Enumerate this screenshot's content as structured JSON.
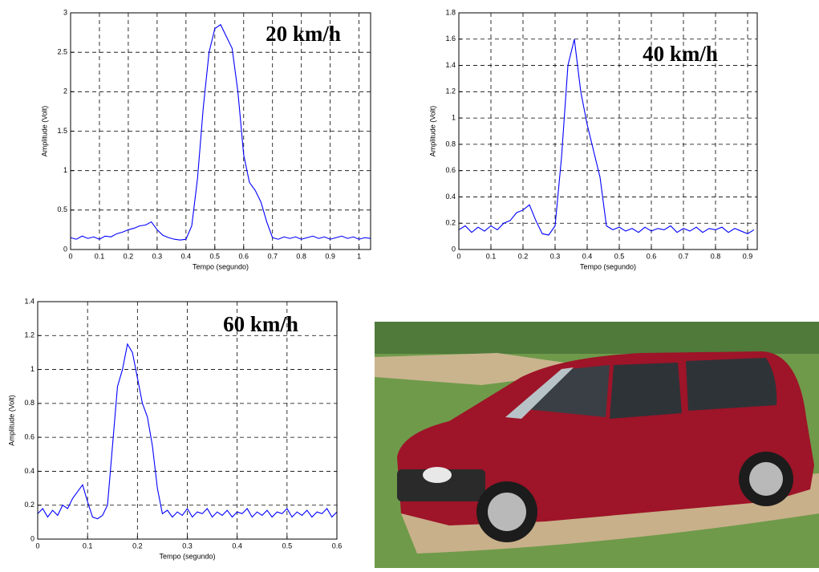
{
  "chart_data": [
    {
      "type": "line",
      "annotation": "20 km/h",
      "xlabel": "Tempo (segundo)",
      "ylabel": "Amplitude (Volt)",
      "color": "#0000ff",
      "grid": true,
      "xlim": [
        0,
        1.04
      ],
      "xticks": [
        0,
        0.1,
        0.2,
        0.3,
        0.4,
        0.5,
        0.6,
        0.7,
        0.8,
        0.9,
        1
      ],
      "ylim": [
        0,
        3
      ],
      "yticks": [
        0,
        0.5,
        1,
        1.5,
        2,
        2.5,
        3
      ],
      "x": [
        0,
        0.02,
        0.04,
        0.06,
        0.08,
        0.1,
        0.12,
        0.14,
        0.16,
        0.18,
        0.2,
        0.22,
        0.24,
        0.26,
        0.28,
        0.3,
        0.32,
        0.34,
        0.36,
        0.38,
        0.4,
        0.42,
        0.44,
        0.46,
        0.48,
        0.5,
        0.52,
        0.54,
        0.56,
        0.58,
        0.6,
        0.62,
        0.64,
        0.66,
        0.68,
        0.7,
        0.72,
        0.74,
        0.76,
        0.78,
        0.8,
        0.82,
        0.84,
        0.86,
        0.88,
        0.9,
        0.92,
        0.94,
        0.96,
        0.98,
        1,
        1.02,
        1.04
      ],
      "values": [
        0.15,
        0.13,
        0.17,
        0.14,
        0.16,
        0.13,
        0.17,
        0.16,
        0.2,
        0.22,
        0.25,
        0.27,
        0.3,
        0.31,
        0.35,
        0.25,
        0.18,
        0.15,
        0.13,
        0.12,
        0.13,
        0.3,
        0.9,
        1.8,
        2.5,
        2.8,
        2.85,
        2.7,
        2.55,
        2.0,
        1.2,
        0.85,
        0.75,
        0.6,
        0.35,
        0.15,
        0.13,
        0.16,
        0.14,
        0.16,
        0.13,
        0.15,
        0.17,
        0.14,
        0.16,
        0.13,
        0.15,
        0.17,
        0.14,
        0.16,
        0.13,
        0.15,
        0.14
      ]
    },
    {
      "type": "line",
      "annotation": "40 km/h",
      "xlabel": "Tempo (segundo)",
      "ylabel": "Amplitude (Volt)",
      "color": "#0000ff",
      "grid": true,
      "xlim": [
        0,
        0.93
      ],
      "xticks": [
        0,
        0.1,
        0.2,
        0.3,
        0.4,
        0.5,
        0.6,
        0.7,
        0.8,
        0.9
      ],
      "ylim": [
        0,
        1.8
      ],
      "yticks": [
        0,
        0.2,
        0.4,
        0.6,
        0.8,
        1,
        1.2,
        1.4,
        1.6,
        1.8
      ],
      "x": [
        0,
        0.02,
        0.04,
        0.06,
        0.08,
        0.1,
        0.12,
        0.14,
        0.16,
        0.18,
        0.2,
        0.22,
        0.24,
        0.26,
        0.28,
        0.3,
        0.32,
        0.34,
        0.36,
        0.38,
        0.4,
        0.42,
        0.44,
        0.46,
        0.48,
        0.5,
        0.52,
        0.54,
        0.56,
        0.58,
        0.6,
        0.62,
        0.64,
        0.66,
        0.68,
        0.7,
        0.72,
        0.74,
        0.76,
        0.78,
        0.8,
        0.82,
        0.84,
        0.86,
        0.88,
        0.9,
        0.92
      ],
      "values": [
        0.15,
        0.18,
        0.13,
        0.17,
        0.14,
        0.18,
        0.15,
        0.2,
        0.22,
        0.28,
        0.3,
        0.34,
        0.22,
        0.12,
        0.11,
        0.18,
        0.7,
        1.4,
        1.6,
        1.2,
        0.95,
        0.75,
        0.55,
        0.18,
        0.15,
        0.17,
        0.14,
        0.16,
        0.13,
        0.17,
        0.14,
        0.16,
        0.15,
        0.18,
        0.13,
        0.16,
        0.14,
        0.17,
        0.13,
        0.16,
        0.15,
        0.17,
        0.13,
        0.16,
        0.14,
        0.12,
        0.15
      ]
    },
    {
      "type": "line",
      "annotation": "60 km/h",
      "xlabel": "Tempo (segundo)",
      "ylabel": "Amplitude (Volt)",
      "color": "#0000ff",
      "grid": true,
      "xlim": [
        0,
        0.6
      ],
      "xticks": [
        0,
        0.1,
        0.2,
        0.3,
        0.4,
        0.5,
        0.6
      ],
      "ylim": [
        0,
        1.4
      ],
      "yticks": [
        0,
        0.2,
        0.4,
        0.6,
        0.8,
        1,
        1.2,
        1.4
      ],
      "x": [
        0,
        0.01,
        0.02,
        0.03,
        0.04,
        0.05,
        0.06,
        0.07,
        0.08,
        0.09,
        0.1,
        0.11,
        0.12,
        0.13,
        0.14,
        0.15,
        0.16,
        0.17,
        0.18,
        0.19,
        0.2,
        0.21,
        0.22,
        0.23,
        0.24,
        0.25,
        0.26,
        0.27,
        0.28,
        0.29,
        0.3,
        0.31,
        0.32,
        0.33,
        0.34,
        0.35,
        0.36,
        0.37,
        0.38,
        0.39,
        0.4,
        0.41,
        0.42,
        0.43,
        0.44,
        0.45,
        0.46,
        0.47,
        0.48,
        0.49,
        0.5,
        0.51,
        0.52,
        0.53,
        0.54,
        0.55,
        0.56,
        0.57,
        0.58,
        0.59,
        0.6
      ],
      "values": [
        0.15,
        0.18,
        0.13,
        0.17,
        0.14,
        0.2,
        0.18,
        0.24,
        0.28,
        0.32,
        0.22,
        0.13,
        0.12,
        0.14,
        0.2,
        0.55,
        0.9,
        1.0,
        1.15,
        1.1,
        0.95,
        0.8,
        0.72,
        0.55,
        0.3,
        0.15,
        0.17,
        0.13,
        0.16,
        0.14,
        0.18,
        0.13,
        0.16,
        0.15,
        0.18,
        0.13,
        0.16,
        0.14,
        0.17,
        0.13,
        0.16,
        0.15,
        0.18,
        0.13,
        0.16,
        0.14,
        0.17,
        0.13,
        0.16,
        0.15,
        0.18,
        0.13,
        0.16,
        0.14,
        0.17,
        0.13,
        0.16,
        0.15,
        0.18,
        0.13,
        0.16
      ]
    }
  ]
}
